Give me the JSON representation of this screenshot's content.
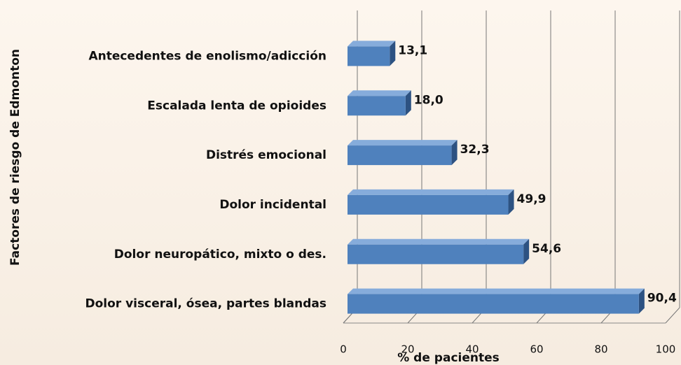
{
  "chart_data": {
    "type": "bar",
    "orientation": "horizontal",
    "categories": [
      "Antecedentes de enolismo/adicción",
      "Escalada lenta de opioides",
      "Distrés emocional",
      "Dolor incidental",
      "Dolor neuropático, mixto o des.",
      "Dolor visceral, ósea, partes blandas"
    ],
    "values": [
      13.1,
      18.0,
      32.3,
      49.9,
      54.6,
      90.4
    ],
    "value_labels": [
      "13,1",
      "18,0",
      "32,3",
      "49,9",
      "54,6",
      "90,4"
    ],
    "color": "#4f81bd",
    "xlim": [
      0,
      100
    ],
    "xticks": [
      0,
      20,
      40,
      60,
      80,
      100
    ],
    "xlabel": "% de pacientes",
    "ylabel": "Factores de riesgo de Edmonton",
    "grid": true
  }
}
